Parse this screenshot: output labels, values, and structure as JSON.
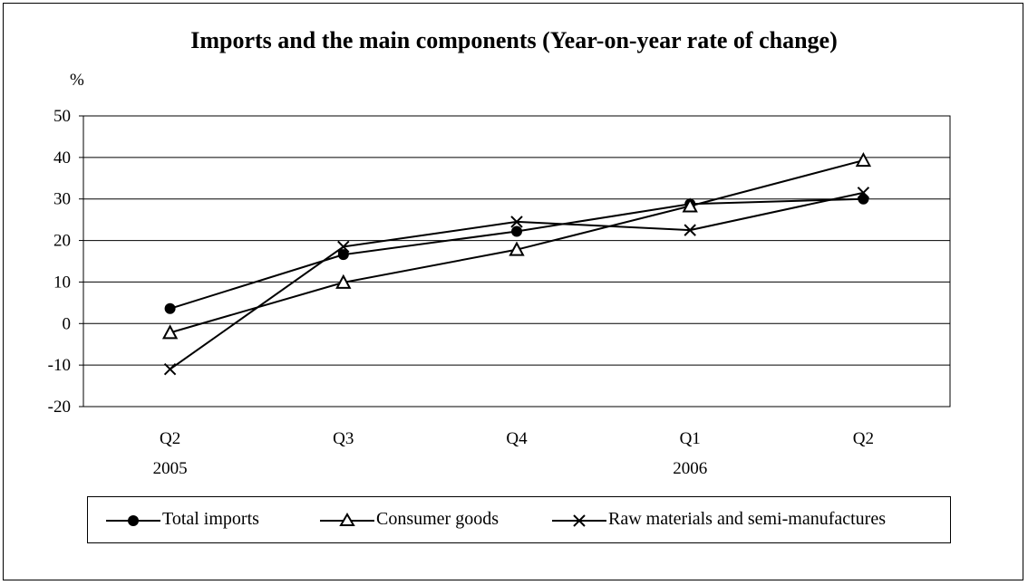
{
  "chart_data": {
    "type": "line",
    "title": "Imports and the main components (Year-on-year rate of change)",
    "ylabel": "%",
    "xlabel": "",
    "categories": [
      "Q2",
      "Q3",
      "Q4",
      "Q1",
      "Q2"
    ],
    "category_years": [
      "2005",
      "",
      "",
      "2006",
      ""
    ],
    "ylim": [
      -20,
      50
    ],
    "yticks": [
      50,
      40,
      30,
      20,
      10,
      0,
      -10,
      -20
    ],
    "grid": true,
    "legend_position": "bottom",
    "series": [
      {
        "name": "Total imports",
        "marker": "filled-circle",
        "values": [
          3.6,
          16.6,
          22.2,
          28.8,
          30.0
        ]
      },
      {
        "name": "Consumer goods",
        "marker": "open-triangle",
        "values": [
          -2.2,
          9.9,
          17.8,
          28.3,
          39.3
        ]
      },
      {
        "name": "Raw materials and semi-manufactures",
        "marker": "x-cross",
        "values": [
          -11.0,
          18.5,
          24.5,
          22.5,
          31.5
        ]
      }
    ],
    "colors": {
      "line": "#000000",
      "grid": "#000000",
      "background": "#ffffff"
    }
  }
}
